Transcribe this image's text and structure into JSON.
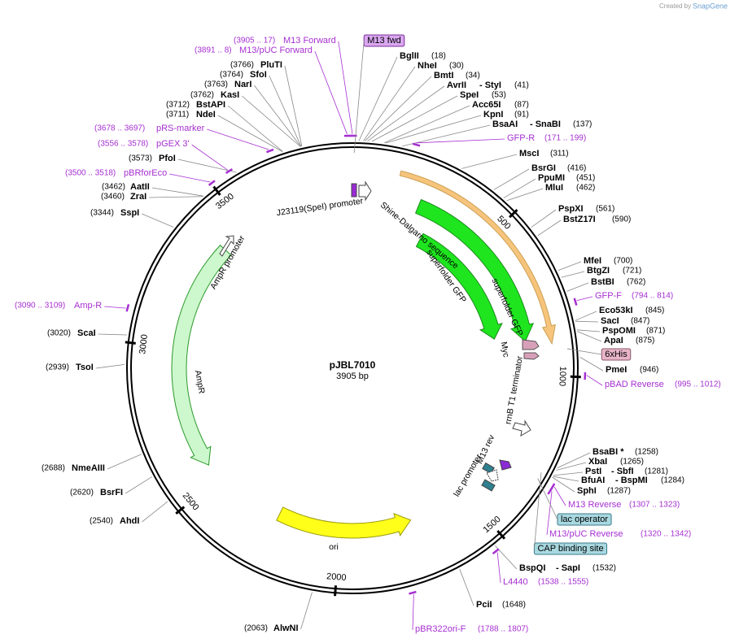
{
  "credit": "Created by",
  "brand": "SnapGene",
  "plasmid": {
    "name": "pJBL7010",
    "size": "3905 bp"
  },
  "ticks": [
    "500",
    "1000",
    "1500",
    "2000",
    "2500",
    "3000",
    "3500"
  ],
  "sites": [
    {
      "name": "BglII",
      "pos": "(18)"
    },
    {
      "name": "NheI",
      "pos": "(30)"
    },
    {
      "name": "BmtI",
      "pos": "(34)"
    },
    {
      "name": "AvrII",
      "name2": "- StyI",
      "pos": "(41)"
    },
    {
      "name": "SpeI",
      "pos": "(53)"
    },
    {
      "name": "Acc65I",
      "pos": "(87)"
    },
    {
      "name": "KpnI",
      "pos": "(91)"
    },
    {
      "name": "BsaAI",
      "name2": "- SnaBI",
      "pos": "(137)"
    },
    {
      "name": "MscI",
      "pos": "(311)"
    },
    {
      "name": "BsrGI",
      "pos": "(416)"
    },
    {
      "name": "PpuMI",
      "pos": "(451)"
    },
    {
      "name": "MluI",
      "pos": "(462)"
    },
    {
      "name": "PspXI",
      "pos": "(561)"
    },
    {
      "name": "BstZ17I",
      "pos": "(590)"
    },
    {
      "name": "MfeI",
      "pos": "(700)"
    },
    {
      "name": "BtgZI",
      "pos": "(721)"
    },
    {
      "name": "BstBI",
      "pos": "(762)"
    },
    {
      "name": "Eco53kI",
      "pos": "(845)"
    },
    {
      "name": "SacI",
      "pos": "(847)"
    },
    {
      "name": "PspOMI",
      "pos": "(871)"
    },
    {
      "name": "ApaI",
      "pos": "(875)"
    },
    {
      "name": "PmeI",
      "pos": "(946)"
    },
    {
      "name": "BsaBI *",
      "pos": "(1258)"
    },
    {
      "name": "XbaI",
      "pos": "(1265)"
    },
    {
      "name": "PstI",
      "name2": "- SbfI",
      "pos": "(1281)"
    },
    {
      "name": "BfuAI",
      "name2": "- BspMI",
      "pos": "(1284)"
    },
    {
      "name": "SphI",
      "pos": "(1287)"
    },
    {
      "name": "BspQI",
      "name2": "- SapI",
      "pos": "(1532)"
    },
    {
      "name": "PciI",
      "pos": "(1648)"
    },
    {
      "name": "AlwNI",
      "pos": "(2063)"
    },
    {
      "name": "AhdI",
      "pos": "(2540)"
    },
    {
      "name": "BsrFI",
      "pos": "(2620)"
    },
    {
      "name": "NmeAIII",
      "pos": "(2688)"
    },
    {
      "name": "TsoI",
      "pos": "(2939)"
    },
    {
      "name": "ScaI",
      "pos": "(3020)"
    },
    {
      "name": "SspI",
      "pos": "(3344)"
    },
    {
      "name": "ZraI",
      "pos": "(3460)"
    },
    {
      "name": "AatII",
      "pos": "(3462)"
    },
    {
      "name": "PfoI",
      "pos": "(3573)"
    },
    {
      "name": "NdeI",
      "pos": "(3711)"
    },
    {
      "name": "BstAPI",
      "pos": "(3712)"
    },
    {
      "name": "KasI",
      "pos": "(3762)"
    },
    {
      "name": "NarI",
      "pos": "(3763)"
    },
    {
      "name": "SfoI",
      "pos": "(3764)"
    },
    {
      "name": "PluTI",
      "pos": "(3766)"
    }
  ],
  "primers": [
    {
      "name": "M13 Forward",
      "range": "(3905 .. 17)"
    },
    {
      "name": "M13/pUC Forward",
      "range": "(3891 .. 8)"
    },
    {
      "name": "pRS-marker",
      "range": "(3678 .. 3697)"
    },
    {
      "name": "pGEX 3'",
      "range": "(3556 .. 3578)"
    },
    {
      "name": "pBRforEco",
      "range": "(3500 .. 3518)"
    },
    {
      "name": "Amp-R",
      "range": "(3090 .. 3109)"
    },
    {
      "name": "GFP-R",
      "range": "(171 .. 199)"
    },
    {
      "name": "GFP-F",
      "range": "(794 .. 814)"
    },
    {
      "name": "pBAD Reverse",
      "range": "(995 .. 1012)"
    },
    {
      "name": "M13 Reverse",
      "range": "(1307 .. 1323)"
    },
    {
      "name": "M13/pUC Reverse",
      "range": "(1320 .. 1342)"
    },
    {
      "name": "L4440",
      "range": "(1538 .. 1555)"
    },
    {
      "name": "pBR322ori-F",
      "range": "(1788 .. 1807)"
    }
  ],
  "boxed": [
    "M13 fwd",
    "6xHis",
    "lac operator",
    "CAP binding site"
  ],
  "features": [
    "J23119(SpeI) promoter",
    "Shine-Dalgarno sequence",
    "superfolder GFP",
    "superfolder GFP",
    "Myc",
    "rrnB T1 terminator",
    "M13 rev",
    "lac promoter",
    "AmpR promoter",
    "AmpR",
    "ori"
  ]
}
